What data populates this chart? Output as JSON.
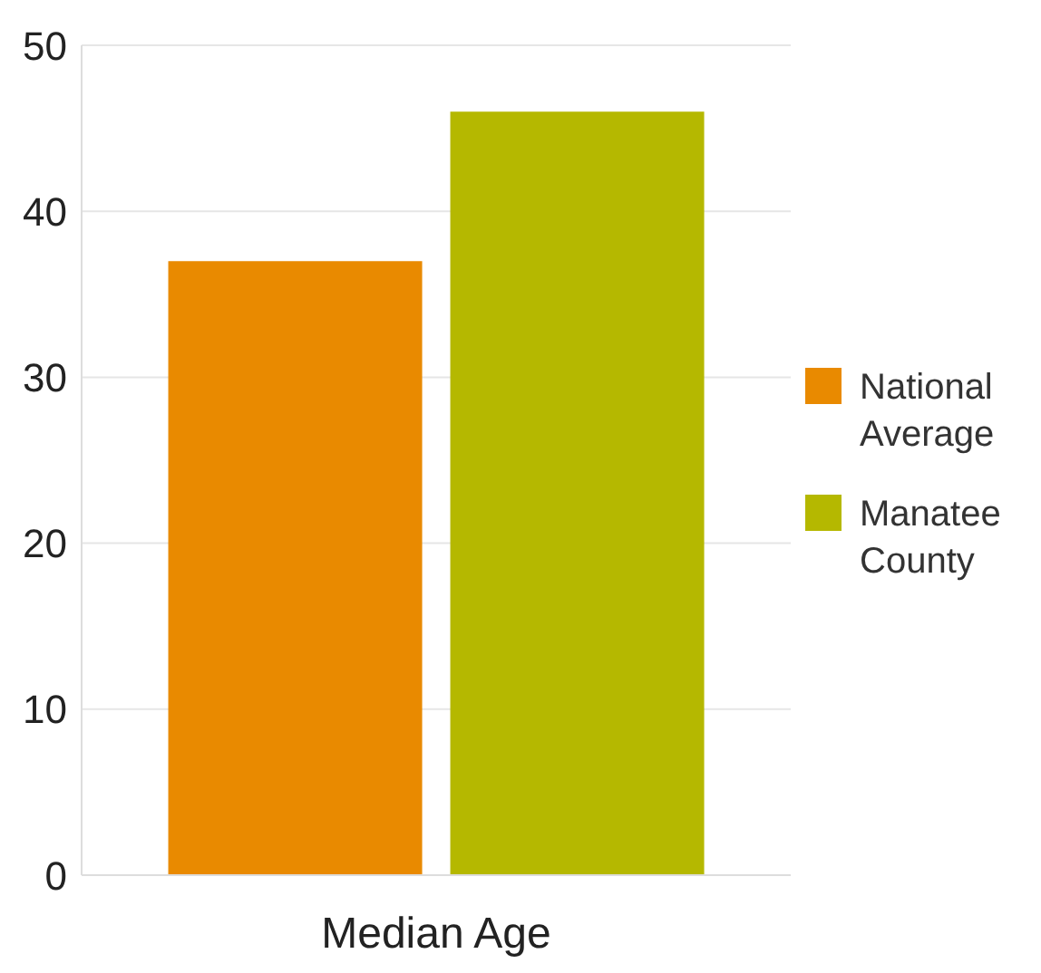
{
  "chart_data": {
    "type": "bar",
    "xlabel": "Median Age",
    "categories": [
      null,
      null
    ],
    "series": [
      {
        "name": "National Average",
        "color": "#e98a00",
        "values": [
          37,
          null
        ]
      },
      {
        "name": "Manatee County",
        "color": "#b5b800",
        "values": [
          null,
          46
        ]
      }
    ],
    "ylim": [
      0,
      50
    ],
    "yticks": [
      0,
      10,
      20,
      30,
      40,
      50
    ],
    "grid": "y",
    "legend": "right"
  }
}
